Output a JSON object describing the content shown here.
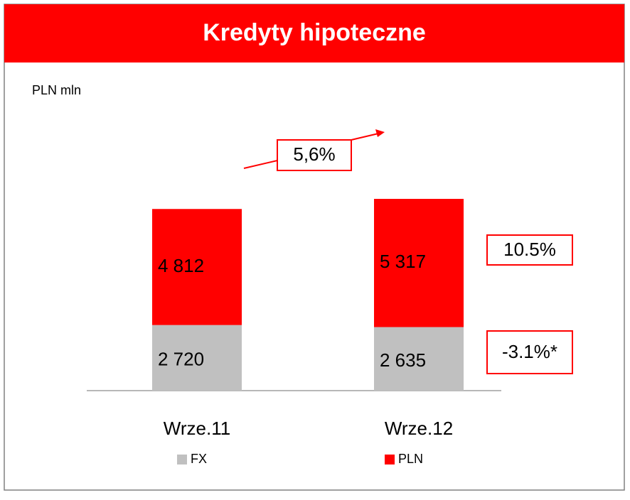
{
  "chart_data": {
    "type": "stacked_bar",
    "title": "Kredyty hipoteczne",
    "unit_label": "PLN mln",
    "categories": [
      "Wrze.11",
      "Wrze.12"
    ],
    "series": [
      {
        "name": "FX",
        "color": "#c0c0c0",
        "values": [
          2720,
          2635
        ],
        "value_labels": [
          "2 720",
          "2 635"
        ]
      },
      {
        "name": "PLN",
        "color": "#ff0000",
        "values": [
          4812,
          5317
        ],
        "value_labels": [
          "4 812",
          "5 317"
        ]
      }
    ],
    "annotations": [
      "5,6%",
      "10.5%",
      "-3.1%*"
    ]
  }
}
